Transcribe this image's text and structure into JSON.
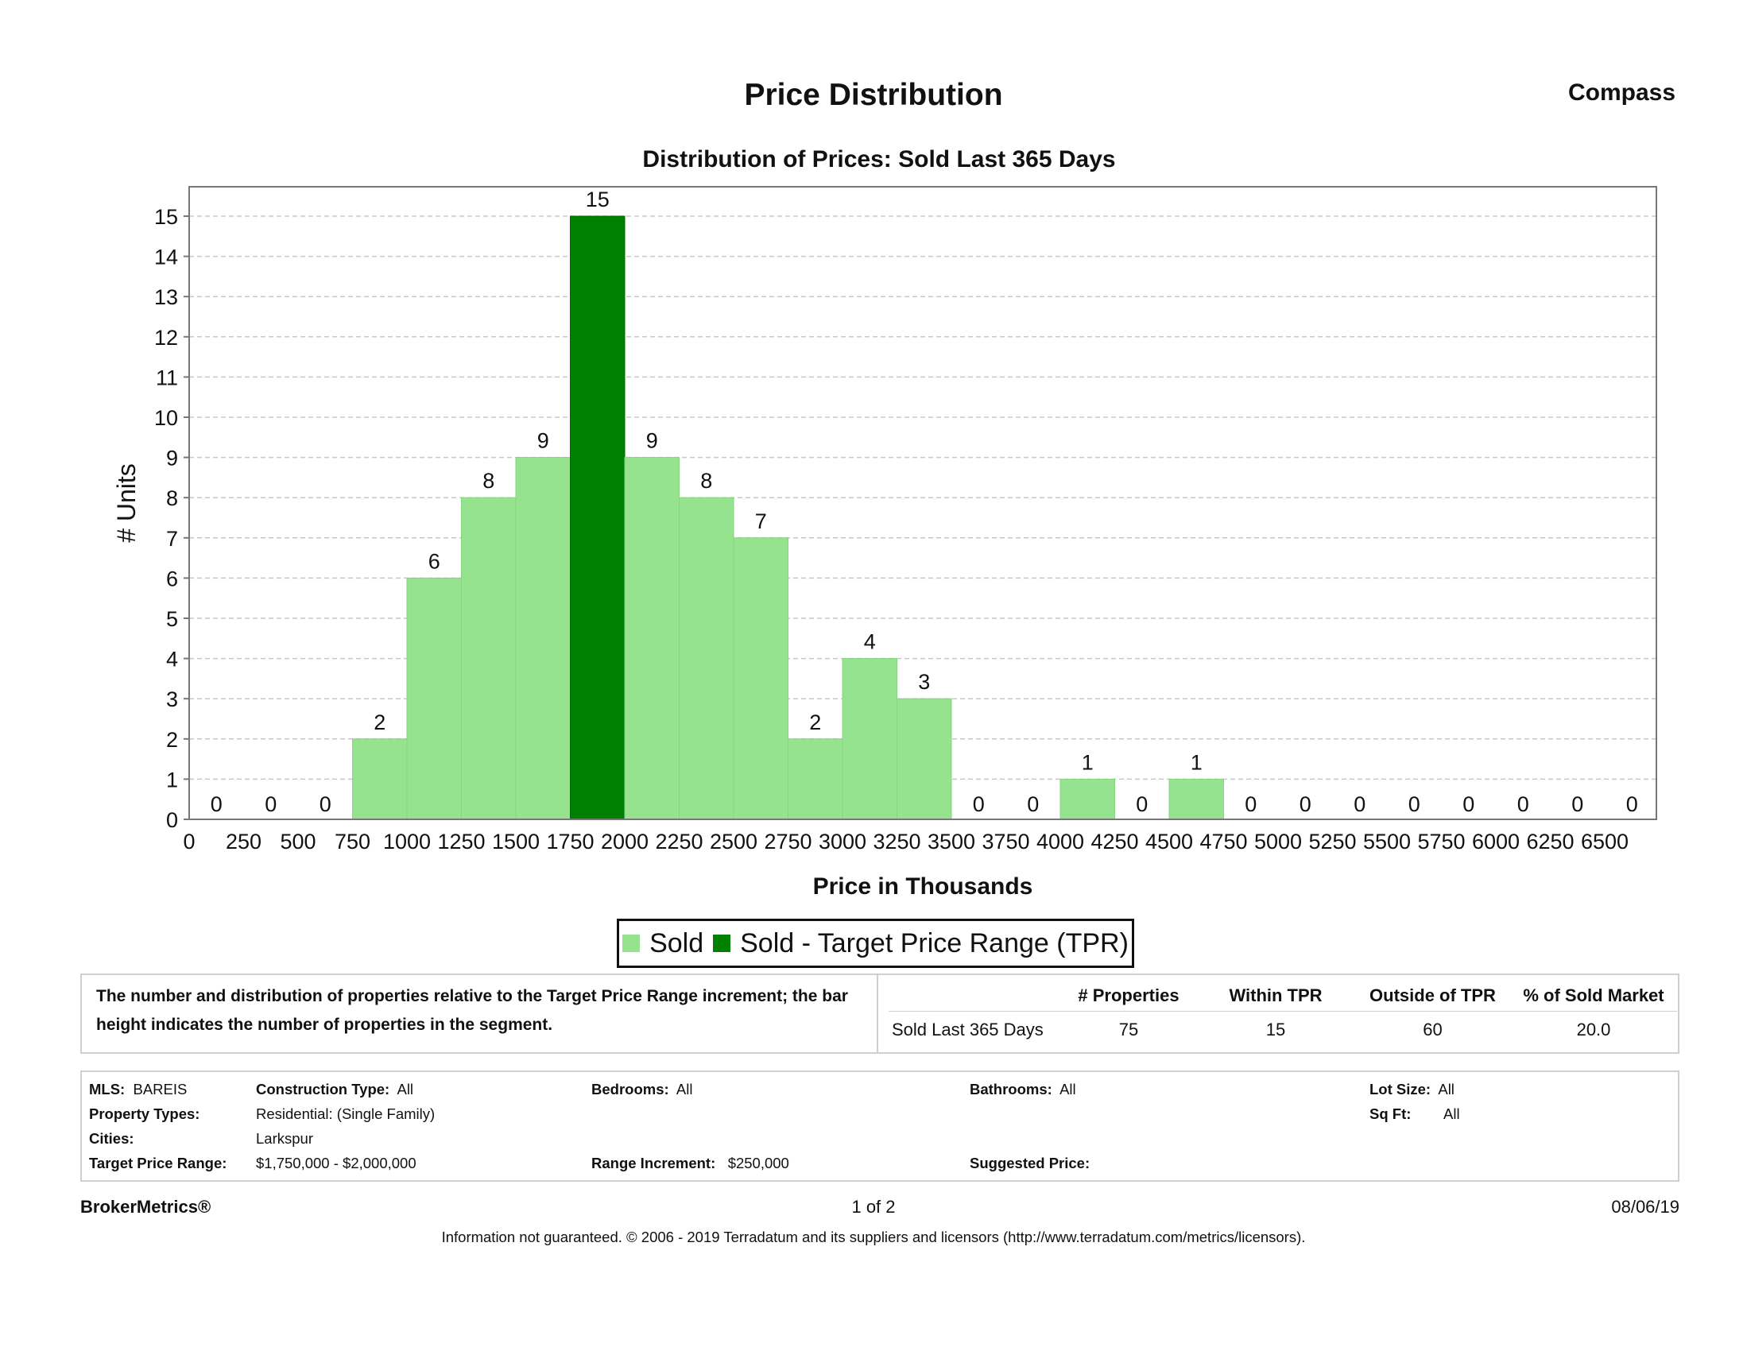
{
  "header": {
    "title": "Price Distribution",
    "brand": "Compass"
  },
  "chart_data": {
    "type": "bar",
    "title": "Distribution of Prices: Sold Last 365 Days",
    "xlabel": "Price in Thousands",
    "ylabel": "# Units",
    "ylim": [
      0,
      15
    ],
    "yticks": [
      0,
      1,
      2,
      3,
      4,
      5,
      6,
      7,
      8,
      9,
      10,
      11,
      12,
      13,
      14,
      15
    ],
    "x_ticks": [
      "0",
      "250",
      "500",
      "750",
      "1000",
      "1250",
      "1500",
      "1750",
      "2000",
      "2250",
      "2500",
      "2750",
      "3000",
      "3250",
      "3500",
      "3750",
      "4000",
      "4250",
      "4500",
      "4750",
      "5000",
      "5250",
      "5500",
      "5750",
      "6000",
      "6250",
      "6500"
    ],
    "bins": [
      "0-250",
      "250-500",
      "500-750",
      "750-1000",
      "1000-1250",
      "1250-1500",
      "1500-1750",
      "1750-2000",
      "2000-2250",
      "2250-2500",
      "2500-2750",
      "2750-3000",
      "3000-3250",
      "3250-3500",
      "3500-3750",
      "3750-4000",
      "4000-4250",
      "4250-4500",
      "4500-4750",
      "4750-5000",
      "5000-5250",
      "5250-5500",
      "5500-5750",
      "5750-6000",
      "6000-6250",
      "6250-6500",
      "6500+"
    ],
    "values": [
      0,
      0,
      0,
      2,
      6,
      8,
      9,
      15,
      9,
      8,
      7,
      2,
      4,
      3,
      0,
      0,
      1,
      0,
      1,
      0,
      0,
      0,
      0,
      0,
      0,
      0,
      0
    ],
    "target_bin_index": 7,
    "grid": "horizontal dashed",
    "legend_position": "bottom-center",
    "series": [
      {
        "name": "Sold",
        "color": "#95e38f"
      },
      {
        "name": "Sold - Target Price Range (TPR)",
        "color": "#008000"
      }
    ]
  },
  "summary": {
    "description": "The number and distribution of properties relative to the Target Price Range increment; the bar height indicates the number of properties in the segment.",
    "headers": [
      "# Properties",
      "Within TPR",
      "Outside of TPR",
      "% of Sold Market"
    ],
    "row_label": "Sold Last 365 Days",
    "row_values": [
      "75",
      "15",
      "60",
      "20.0"
    ]
  },
  "criteria": {
    "mls_label": "MLS:",
    "mls": "BAREIS",
    "construction_label": "Construction Type:",
    "construction": "All",
    "bedrooms_label": "Bedrooms:",
    "bedrooms": "All",
    "bathrooms_label": "Bathrooms:",
    "bathrooms": "All",
    "lot_label": "Lot Size:",
    "lot": "All",
    "ptype_label": "Property Types:",
    "ptype": "Residential: (Single Family)",
    "sqft_label": "Sq Ft:",
    "sqft": "All",
    "cities_label": "Cities:",
    "cities": "Larkspur",
    "tpr_label": "Target Price Range:",
    "tpr": "$1,750,000 - $2,000,000",
    "increment_label": "Range Increment:",
    "increment": "$250,000",
    "suggested_label": "Suggested Price:",
    "suggested": ""
  },
  "footer": {
    "left": "BrokerMetrics®",
    "page": "1 of 2",
    "date": "08/06/19",
    "disclaimer": "Information not guaranteed.  © 2006 - 2019 Terradatum and its suppliers and licensors (http://www.terradatum.com/metrics/licensors)."
  }
}
